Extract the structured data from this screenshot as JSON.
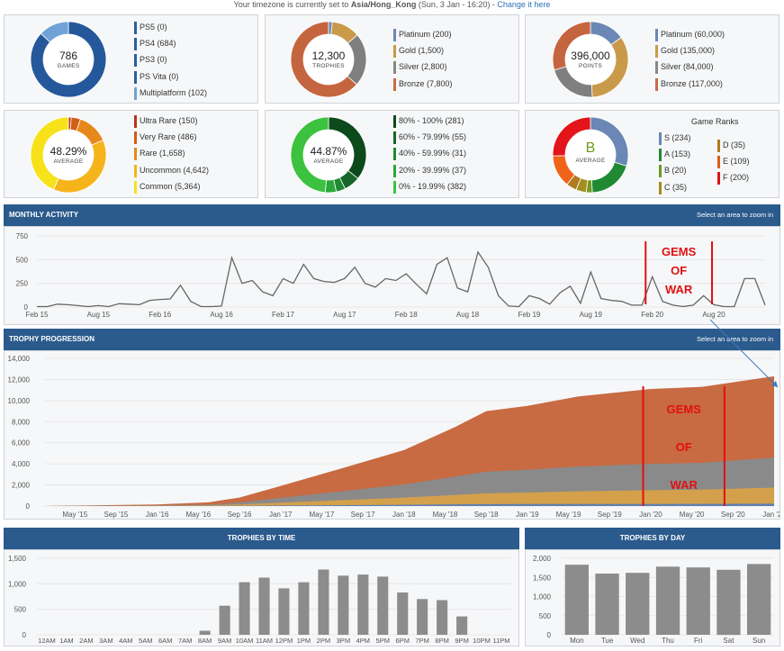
{
  "timezone": {
    "prefix": "Your timezone is currently set to ",
    "zone": "Asia/Hong_Kong",
    "date": " (Sun, 3 Jan - 16:20) - ",
    "link": "Change it here"
  },
  "games_panel": {
    "total": "786",
    "label": "GAMES",
    "legend": [
      {
        "label": "PS5 (0)",
        "color": "#2a5f9e"
      },
      {
        "label": "PS4 (684)",
        "color": "#2a5f9e"
      },
      {
        "label": "PS3 (0)",
        "color": "#2a5f9e"
      },
      {
        "label": "PS Vita (0)",
        "color": "#2a5f9e"
      },
      {
        "label": "Multiplatform (102)",
        "color": "#6fa3d8"
      }
    ],
    "slices": [
      684,
      102
    ],
    "slice_colors": [
      "#24589a",
      "#6fa3d8"
    ]
  },
  "trophies_panel": {
    "total": "12,300",
    "label": "TROPHIES",
    "legend": [
      {
        "label": "Platinum (200)",
        "color": "#6b87b5"
      },
      {
        "label": "Gold (1,500)",
        "color": "#c99a4a"
      },
      {
        "label": "Silver (2,800)",
        "color": "#878787"
      },
      {
        "label": "Bronze (7,800)",
        "color": "#c86c45"
      }
    ],
    "slices": [
      200,
      1500,
      2800,
      7800
    ],
    "slice_colors": [
      "#6b87b5",
      "#c99a4a",
      "#7f7f7f",
      "#c5653f"
    ]
  },
  "points_panel": {
    "total": "396,000",
    "label": "POINTS",
    "legend": [
      {
        "label": "Platinum (60,000)",
        "color": "#6b87b5"
      },
      {
        "label": "Gold (135,000)",
        "color": "#c99a4a"
      },
      {
        "label": "Silver (84,000)",
        "color": "#878787"
      },
      {
        "label": "Bronze (117,000)",
        "color": "#c86c45"
      }
    ],
    "slices": [
      60000,
      135000,
      84000,
      117000
    ],
    "slice_colors": [
      "#6b87b5",
      "#c99a4a",
      "#7f7f7f",
      "#c5653f"
    ]
  },
  "rarity_panel": {
    "total": "48.29%",
    "label": "AVERAGE",
    "legend": [
      {
        "label": "Ultra Rare (150)",
        "color": "#b5361c"
      },
      {
        "label": "Very Rare (486)",
        "color": "#d45d14"
      },
      {
        "label": "Rare (1,658)",
        "color": "#e7881b"
      },
      {
        "label": "Uncommon (4,642)",
        "color": "#f2b416"
      },
      {
        "label": "Common (5,364)",
        "color": "#f7e21a"
      }
    ],
    "slices": [
      150,
      486,
      1658,
      4642,
      5364
    ],
    "slice_colors": [
      "#b5361c",
      "#d45d14",
      "#e7881b",
      "#f5b41a",
      "#f7e21a"
    ]
  },
  "completion_panel": {
    "total": "44.87%",
    "label": "AVERAGE",
    "legend": [
      {
        "label": "80% - 100% (281)",
        "color": "#0c4a1c"
      },
      {
        "label": "60% - 79.99% (55)",
        "color": "#16662a"
      },
      {
        "label": "40% - 59.99% (31)",
        "color": "#1f8a33"
      },
      {
        "label": "20% - 39.99% (37)",
        "color": "#2aa83b"
      },
      {
        "label": "0% - 19.99% (382)",
        "color": "#3cc23f"
      }
    ],
    "slices": [
      281,
      55,
      31,
      37,
      382
    ],
    "slice_colors": [
      "#0c4a1c",
      "#16662a",
      "#1f8a33",
      "#2aa83b",
      "#3cc23f"
    ]
  },
  "ranks_panel": {
    "grade": "B",
    "label": "AVERAGE",
    "title": "Game Ranks",
    "legend_left": [
      {
        "label": "S (234)",
        "color": "#6b87b5"
      },
      {
        "label": "A (153)",
        "color": "#1f8a33"
      },
      {
        "label": "B (20)",
        "color": "#6e9a1f"
      },
      {
        "label": "C (35)",
        "color": "#a38f1f"
      }
    ],
    "legend_right": [
      {
        "label": "D (35)",
        "color": "#b07a20"
      },
      {
        "label": "E (109)",
        "color": "#e05a1a"
      },
      {
        "label": "F (200)",
        "color": "#d9141a"
      }
    ],
    "slices": [
      234,
      153,
      20,
      35,
      35,
      109,
      200
    ],
    "slice_colors": [
      "#6b87b5",
      "#1f8a33",
      "#6e9a1f",
      "#a38f1f",
      "#b07a20",
      "#f0641a",
      "#e3141a"
    ]
  },
  "monthly": {
    "title": "MONTHLY ACTIVITY",
    "zoom_hint": "Select an area to zoom in",
    "annotation": [
      "GEMS",
      "OF",
      "WAR"
    ]
  },
  "progression": {
    "title": "TROPHY PROGRESSION",
    "zoom_hint": "Select an area to zoom in",
    "annotation": [
      "GEMS",
      "OF",
      "WAR"
    ]
  },
  "by_time": {
    "title": "TROPHIES BY TIME"
  },
  "by_day": {
    "title": "TROPHIES BY DAY"
  },
  "chart_data": [
    {
      "type": "line",
      "title": "MONTHLY ACTIVITY",
      "ylim": [
        0,
        750
      ],
      "yticks": [
        "0",
        "250",
        "500",
        "750"
      ],
      "xticks": [
        "Feb 15",
        "Aug 15",
        "Feb 16",
        "Aug 16",
        "Feb 17",
        "Aug 17",
        "Feb 18",
        "Aug 18",
        "Feb 19",
        "Aug 19",
        "Feb 20",
        "Aug 20"
      ],
      "x": [
        "Feb 15",
        "Mar 15",
        "Apr 15",
        "May 15",
        "Jun 15",
        "Jul 15",
        "Aug 15",
        "Sep 15",
        "Oct 15",
        "Nov 15",
        "Dec 15",
        "Jan 16",
        "Feb 16",
        "Mar 16",
        "Apr 16",
        "May 16",
        "Jun 16",
        "Jul 16",
        "Aug 16",
        "Sep 16",
        "Oct 16",
        "Nov 16",
        "Dec 16",
        "Jan 17",
        "Feb 17",
        "Mar 17",
        "Apr 17",
        "May 17",
        "Jun 17",
        "Jul 17",
        "Aug 17",
        "Sep 17",
        "Oct 17",
        "Nov 17",
        "Dec 17",
        "Jan 18",
        "Feb 18",
        "Mar 18",
        "Apr 18",
        "May 18",
        "Jun 18",
        "Jul 18",
        "Aug 18",
        "Sep 18",
        "Oct 18",
        "Nov 18",
        "Dec 18",
        "Jan 19",
        "Feb 19",
        "Mar 19",
        "Apr 19",
        "May 19",
        "Jun 19",
        "Jul 19",
        "Aug 19",
        "Sep 19",
        "Oct 19",
        "Nov 19",
        "Dec 19",
        "Jan 20",
        "Feb 20",
        "Mar 20",
        "Apr 20",
        "May 20",
        "Jun 20",
        "Jul 20",
        "Aug 20",
        "Sep 20",
        "Oct 20",
        "Nov 20",
        "Dec 20",
        "Jan 21"
      ],
      "values": [
        5,
        5,
        30,
        25,
        15,
        5,
        15,
        5,
        35,
        30,
        25,
        70,
        80,
        85,
        230,
        60,
        5,
        5,
        10,
        520,
        250,
        280,
        160,
        120,
        300,
        250,
        450,
        300,
        270,
        260,
        300,
        420,
        250,
        210,
        300,
        280,
        350,
        240,
        140,
        450,
        520,
        200,
        160,
        580,
        420,
        120,
        10,
        5,
        120,
        90,
        30,
        150,
        220,
        40,
        370,
        90,
        70,
        60,
        20,
        20,
        320,
        60,
        20,
        5,
        20,
        120,
        25,
        5,
        5,
        300,
        300,
        20
      ],
      "series": [
        {
          "name": "Trophies",
          "color": "#666666"
        }
      ]
    },
    {
      "type": "area",
      "title": "TROPHY PROGRESSION",
      "ylim": [
        0,
        14000
      ],
      "yticks": [
        "0",
        "2,000",
        "4,000",
        "6,000",
        "8,000",
        "10,000",
        "12,000",
        "14,000"
      ],
      "xticks": [
        "May '15",
        "Sep '15",
        "Jan '16",
        "May '16",
        "Sep '16",
        "Jan '17",
        "May '17",
        "Sep '17",
        "Jan '18",
        "May '18",
        "Sep '18",
        "Jan '19",
        "May '19",
        "Sep '19",
        "Jan '20",
        "May '20",
        "Sep '20",
        "Jan '21"
      ],
      "x": [
        "Feb 15",
        "Jan 16",
        "Jun 16",
        "Sep 16",
        "Jan 17",
        "Jun 17",
        "Jan 18",
        "Jun 18",
        "Sep 18",
        "Jan 19",
        "Jun 19",
        "Jan 20",
        "Jun 20",
        "Jan 21"
      ],
      "series": [
        {
          "name": "Bronze",
          "color": "#c86a42",
          "values": [
            0,
            150,
            350,
            800,
            1900,
            3300,
            5300,
            7500,
            9000,
            9500,
            10400,
            11100,
            11300,
            12300
          ]
        },
        {
          "name": "Silver",
          "color": "#8a8a8a",
          "values": [
            0,
            60,
            140,
            330,
            780,
            1300,
            2050,
            2800,
            3250,
            3450,
            3750,
            4000,
            4100,
            4600
          ]
        },
        {
          "name": "Gold",
          "color": "#d4a04b",
          "values": [
            0,
            30,
            60,
            150,
            320,
            520,
            800,
            1050,
            1200,
            1280,
            1400,
            1500,
            1550,
            1750
          ]
        },
        {
          "name": "Platinum",
          "color": "#5e7fb0",
          "values": [
            0,
            5,
            10,
            25,
            50,
            80,
            120,
            160,
            180,
            190,
            200,
            200,
            205,
            220
          ]
        }
      ]
    },
    {
      "type": "bar",
      "title": "TROPHIES BY TIME",
      "ylim": [
        0,
        1500
      ],
      "yticks": [
        "0",
        "500",
        "1,000",
        "1,500"
      ],
      "categories": [
        "12AM",
        "1AM",
        "2AM",
        "3AM",
        "4AM",
        "5AM",
        "6AM",
        "7AM",
        "8AM",
        "9AM",
        "10AM",
        "11AM",
        "12PM",
        "1PM",
        "2PM",
        "3PM",
        "4PM",
        "5PM",
        "6PM",
        "7PM",
        "8PM",
        "9PM",
        "10PM",
        "11PM"
      ],
      "values": [
        0,
        0,
        0,
        0,
        0,
        0,
        0,
        0,
        80,
        570,
        1030,
        1120,
        910,
        1030,
        1280,
        1160,
        1180,
        1140,
        830,
        700,
        680,
        360,
        0,
        0
      ],
      "color": "#8c8c8c"
    },
    {
      "type": "bar",
      "title": "TROPHIES BY DAY",
      "ylim": [
        0,
        2000
      ],
      "yticks": [
        "0",
        "500",
        "1,000",
        "1,500",
        "2,000"
      ],
      "categories": [
        "Mon",
        "Tue",
        "Wed",
        "Thu",
        "Fri",
        "Sat",
        "Sun"
      ],
      "values": [
        1830,
        1600,
        1620,
        1780,
        1760,
        1700,
        1850
      ],
      "color": "#8c8c8c"
    }
  ]
}
